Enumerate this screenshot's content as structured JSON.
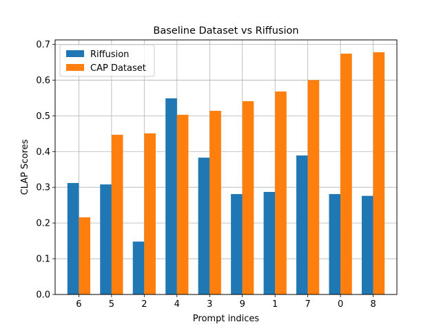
{
  "chart_data": {
    "type": "bar",
    "title": "Baseline Dataset vs Riffusion",
    "xlabel": "Prompt indices",
    "ylabel": "CLAP Scores",
    "categories": [
      "6",
      "5",
      "2",
      "4",
      "3",
      "9",
      "1",
      "7",
      "0",
      "8"
    ],
    "series": [
      {
        "name": "Riffusion",
        "color": "#1f77b4",
        "values": [
          0.312,
          0.308,
          0.148,
          0.549,
          0.383,
          0.281,
          0.287,
          0.389,
          0.281,
          0.276
        ]
      },
      {
        "name": "CAP Dataset",
        "color": "#ff7f0e",
        "values": [
          0.216,
          0.447,
          0.451,
          0.503,
          0.514,
          0.541,
          0.568,
          0.6,
          0.674,
          0.678
        ]
      }
    ],
    "ylim": [
      0,
      0.7125
    ],
    "yticks": [
      "0.0",
      "0.1",
      "0.2",
      "0.3",
      "0.4",
      "0.5",
      "0.6",
      "0.7"
    ],
    "ytick_values": [
      0,
      0.1,
      0.2,
      0.3,
      0.4,
      0.5,
      0.6,
      0.7
    ],
    "grid": true,
    "legend_position": "top-left"
  }
}
